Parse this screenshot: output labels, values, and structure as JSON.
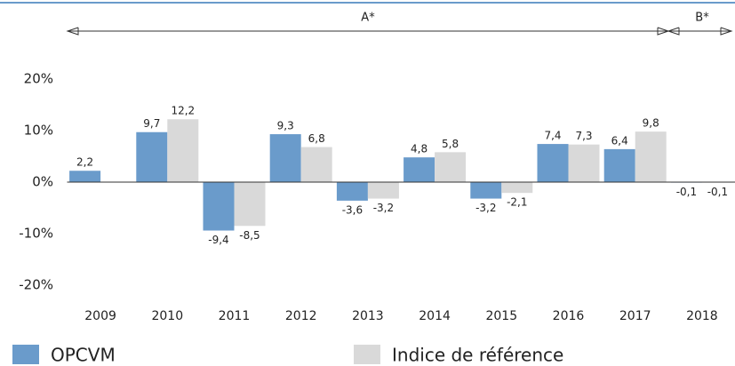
{
  "chart_data": {
    "type": "bar",
    "annotations": [
      "A*",
      "B*"
    ],
    "categories": [
      "2009",
      "2010",
      "2011",
      "2012",
      "2013",
      "2014",
      "2015",
      "2016",
      "2017",
      "2018"
    ],
    "series": [
      {
        "name": "OPCVM",
        "color": "#6a9bcb",
        "values": [
          2.2,
          9.7,
          -9.4,
          9.3,
          -3.6,
          4.8,
          -3.2,
          7.4,
          6.4,
          -0.1
        ],
        "value_labels": [
          "2,2",
          "9,7",
          "-9,4",
          "9,3",
          "-3,6",
          "4,8",
          "-3,2",
          "7,4",
          "6,4",
          "-0,1"
        ]
      },
      {
        "name": "Indice de référence",
        "color": "#d9d9d9",
        "values": [
          null,
          12.2,
          -8.5,
          6.8,
          -3.2,
          5.8,
          -2.1,
          7.3,
          9.8,
          -0.1
        ],
        "value_labels": [
          null,
          "12,2",
          "-8,5",
          "6,8",
          "-3,2",
          "5,8",
          "-2,1",
          "7,3",
          "9,8",
          "-0,1"
        ]
      }
    ],
    "ylim": [
      -20,
      20
    ],
    "yticks": [
      {
        "value": 20,
        "label": "20%"
      },
      {
        "value": 10,
        "label": "10%"
      },
      {
        "value": 0,
        "label": "0%"
      },
      {
        "value": -10,
        "label": "-10%"
      },
      {
        "value": -20,
        "label": "-20%"
      }
    ]
  }
}
